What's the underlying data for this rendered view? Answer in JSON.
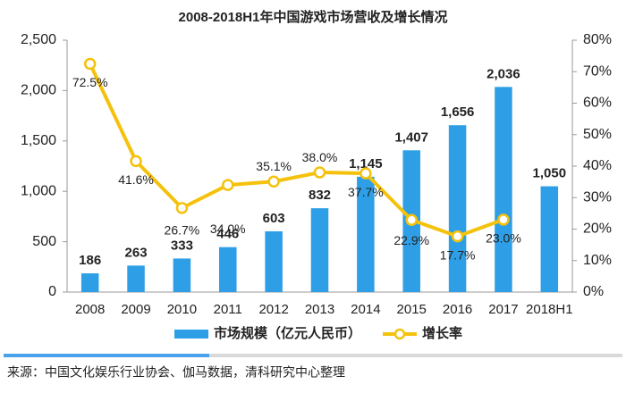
{
  "chart_data": {
    "type": "bar_line",
    "title": "2008-2018H1年中国游戏市场营收及增长情况",
    "categories": [
      "2008",
      "2009",
      "2010",
      "2011",
      "2012",
      "2013",
      "2014",
      "2015",
      "2016",
      "2017",
      "2018H1"
    ],
    "series": [
      {
        "name": "市场规模（亿元人民币）",
        "type": "bar",
        "color": "#2e9fe6",
        "values": [
          186,
          263,
          333,
          446,
          603,
          832,
          1145,
          1407,
          1656,
          2036,
          1050
        ],
        "value_labels": [
          "186",
          "263",
          "333",
          "446",
          "603",
          "832",
          "1,145",
          "1,407",
          "1,656",
          "2,036",
          "1,050"
        ]
      },
      {
        "name": "增长率",
        "type": "line",
        "axis": "y2",
        "color": "#f4c20d",
        "values": [
          72.5,
          41.6,
          26.7,
          34.0,
          35.1,
          38.0,
          37.7,
          22.9,
          17.7,
          23.0,
          null
        ],
        "value_labels": [
          "72.5%",
          "41.6%",
          "26.7%",
          "34.0%",
          "35.1%",
          "38.0%",
          "37.7%",
          "22.9%",
          "17.7%",
          "23.0%",
          null
        ]
      }
    ],
    "ylim": [
      0,
      2500
    ],
    "yticks": [
      0,
      500,
      {
        "value": 1000,
        "label": "1,000"
      },
      {
        "value": 1500,
        "label": "1,500"
      },
      {
        "value": 2000,
        "label": "2,000"
      },
      {
        "value": 2500,
        "label": "2,500"
      }
    ],
    "y2lim": [
      0,
      80
    ],
    "y2ticks": [
      {
        "value": 0,
        "label": "0%"
      },
      {
        "value": 10,
        "label": "10%"
      },
      {
        "value": 20,
        "label": "20%"
      },
      {
        "value": 30,
        "label": "30%"
      },
      {
        "value": 40,
        "label": "40%"
      },
      {
        "value": 50,
        "label": "50%"
      },
      {
        "value": 60,
        "label": "60%"
      },
      {
        "value": 70,
        "label": "70%"
      },
      {
        "value": 80,
        "label": "80%"
      }
    ],
    "grid": false,
    "legend": "bottom",
    "source": "来源：中国文化娱乐行业协会、伽马数据，清科研究中心整理"
  }
}
